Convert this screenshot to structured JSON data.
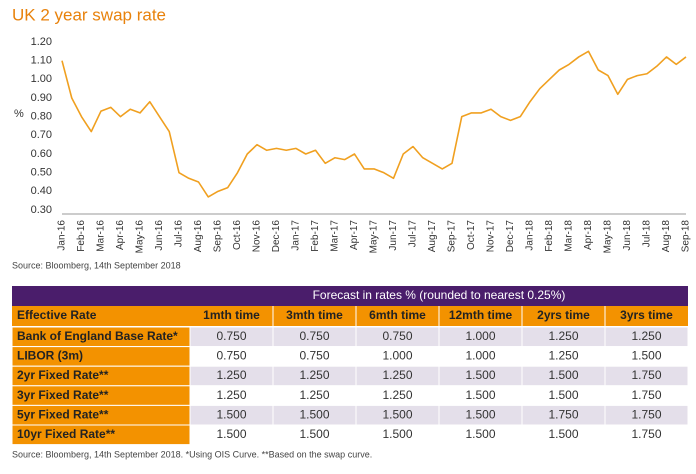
{
  "chart_data": {
    "type": "line",
    "title": "UK 2 year swap rate",
    "y_label": "%",
    "categories": [
      "Jan-16",
      null,
      "Feb-16",
      null,
      "Mar-16",
      null,
      "Apr-16",
      null,
      "May-16",
      null,
      "Jun-16",
      null,
      "Jul-16",
      null,
      "Aug-16",
      null,
      "Sep-16",
      null,
      "Oct-16",
      null,
      "Nov-16",
      null,
      "Dec-16",
      null,
      "Jan-17",
      null,
      "Feb-17",
      null,
      "Mar-17",
      null,
      "Apr-17",
      null,
      "May-17",
      null,
      "Jun-17",
      null,
      "Jul-17",
      null,
      "Aug-17",
      null,
      "Sep-17",
      null,
      "Oct-17",
      null,
      "Nov-17",
      null,
      "Dec-17",
      null,
      "Jan-18",
      null,
      "Feb-18",
      null,
      "Mar-18",
      null,
      "Apr-18",
      null,
      "May-18",
      null,
      "Jun-18",
      null,
      "Jul-18",
      null,
      "Aug-18",
      null,
      "Sep-18"
    ],
    "series": [
      {
        "name": "UK 2 year swap rate",
        "color": "#f0a020",
        "values": [
          1.1,
          0.9,
          0.8,
          0.72,
          0.83,
          0.85,
          0.8,
          0.84,
          0.82,
          0.88,
          0.8,
          0.72,
          0.5,
          0.47,
          0.45,
          0.37,
          0.4,
          0.42,
          0.5,
          0.6,
          0.65,
          0.62,
          0.63,
          0.62,
          0.63,
          0.6,
          0.62,
          0.55,
          0.58,
          0.57,
          0.6,
          0.52,
          0.52,
          0.5,
          0.47,
          0.6,
          0.64,
          0.58,
          0.55,
          0.52,
          0.55,
          0.8,
          0.82,
          0.82,
          0.84,
          0.8,
          0.78,
          0.8,
          0.88,
          0.95,
          1.0,
          1.05,
          1.08,
          1.12,
          1.15,
          1.05,
          1.02,
          0.92,
          1.0,
          1.02,
          1.03,
          1.07,
          1.12,
          1.08,
          1.12
        ]
      }
    ],
    "ylim": [
      0.3,
      1.2
    ],
    "yticks": [
      {
        "value": 0.3,
        "label": "0.30"
      },
      {
        "value": 0.4,
        "label": "0.40"
      },
      {
        "value": 0.5,
        "label": "0.50"
      },
      {
        "value": 0.6,
        "label": "0.60"
      },
      {
        "value": 0.7,
        "label": "0.70"
      },
      {
        "value": 0.8,
        "label": "0.80"
      },
      {
        "value": 0.9,
        "label": "0.90"
      },
      {
        "value": 1.0,
        "label": "1.00"
      },
      {
        "value": 1.1,
        "label": "1.10"
      },
      {
        "value": 1.2,
        "label": "1.20"
      }
    ],
    "grid": false,
    "source": "Source: Bloomberg, 14th September 2018"
  },
  "table": {
    "banner": "Forecast in rates % (rounded to nearest 0.25%)",
    "header": [
      "Effective Rate",
      "1mth time",
      "3mth time",
      "6mth time",
      "12mth time",
      "2yrs time",
      "3yrs time"
    ],
    "rows": [
      [
        "Bank of England Base Rate*",
        "0.750",
        "0.750",
        "0.750",
        "1.000",
        "1.250",
        "1.250"
      ],
      [
        "LIBOR (3m)",
        "0.750",
        "0.750",
        "1.000",
        "1.000",
        "1.250",
        "1.500"
      ],
      [
        "2yr Fixed Rate**",
        "1.250",
        "1.250",
        "1.250",
        "1.500",
        "1.500",
        "1.750"
      ],
      [
        "3yr Fixed Rate**",
        "1.250",
        "1.250",
        "1.250",
        "1.500",
        "1.500",
        "1.750"
      ],
      [
        "5yr Fixed Rate**",
        "1.500",
        "1.500",
        "1.500",
        "1.500",
        "1.750",
        "1.750"
      ],
      [
        "10yr Fixed Rate**",
        "1.500",
        "1.500",
        "1.500",
        "1.500",
        "1.500",
        "1.750"
      ]
    ],
    "footnote": "Source: Bloomberg, 14th September 2018.  *Using OIS Curve.  **Based on the swap curve."
  }
}
